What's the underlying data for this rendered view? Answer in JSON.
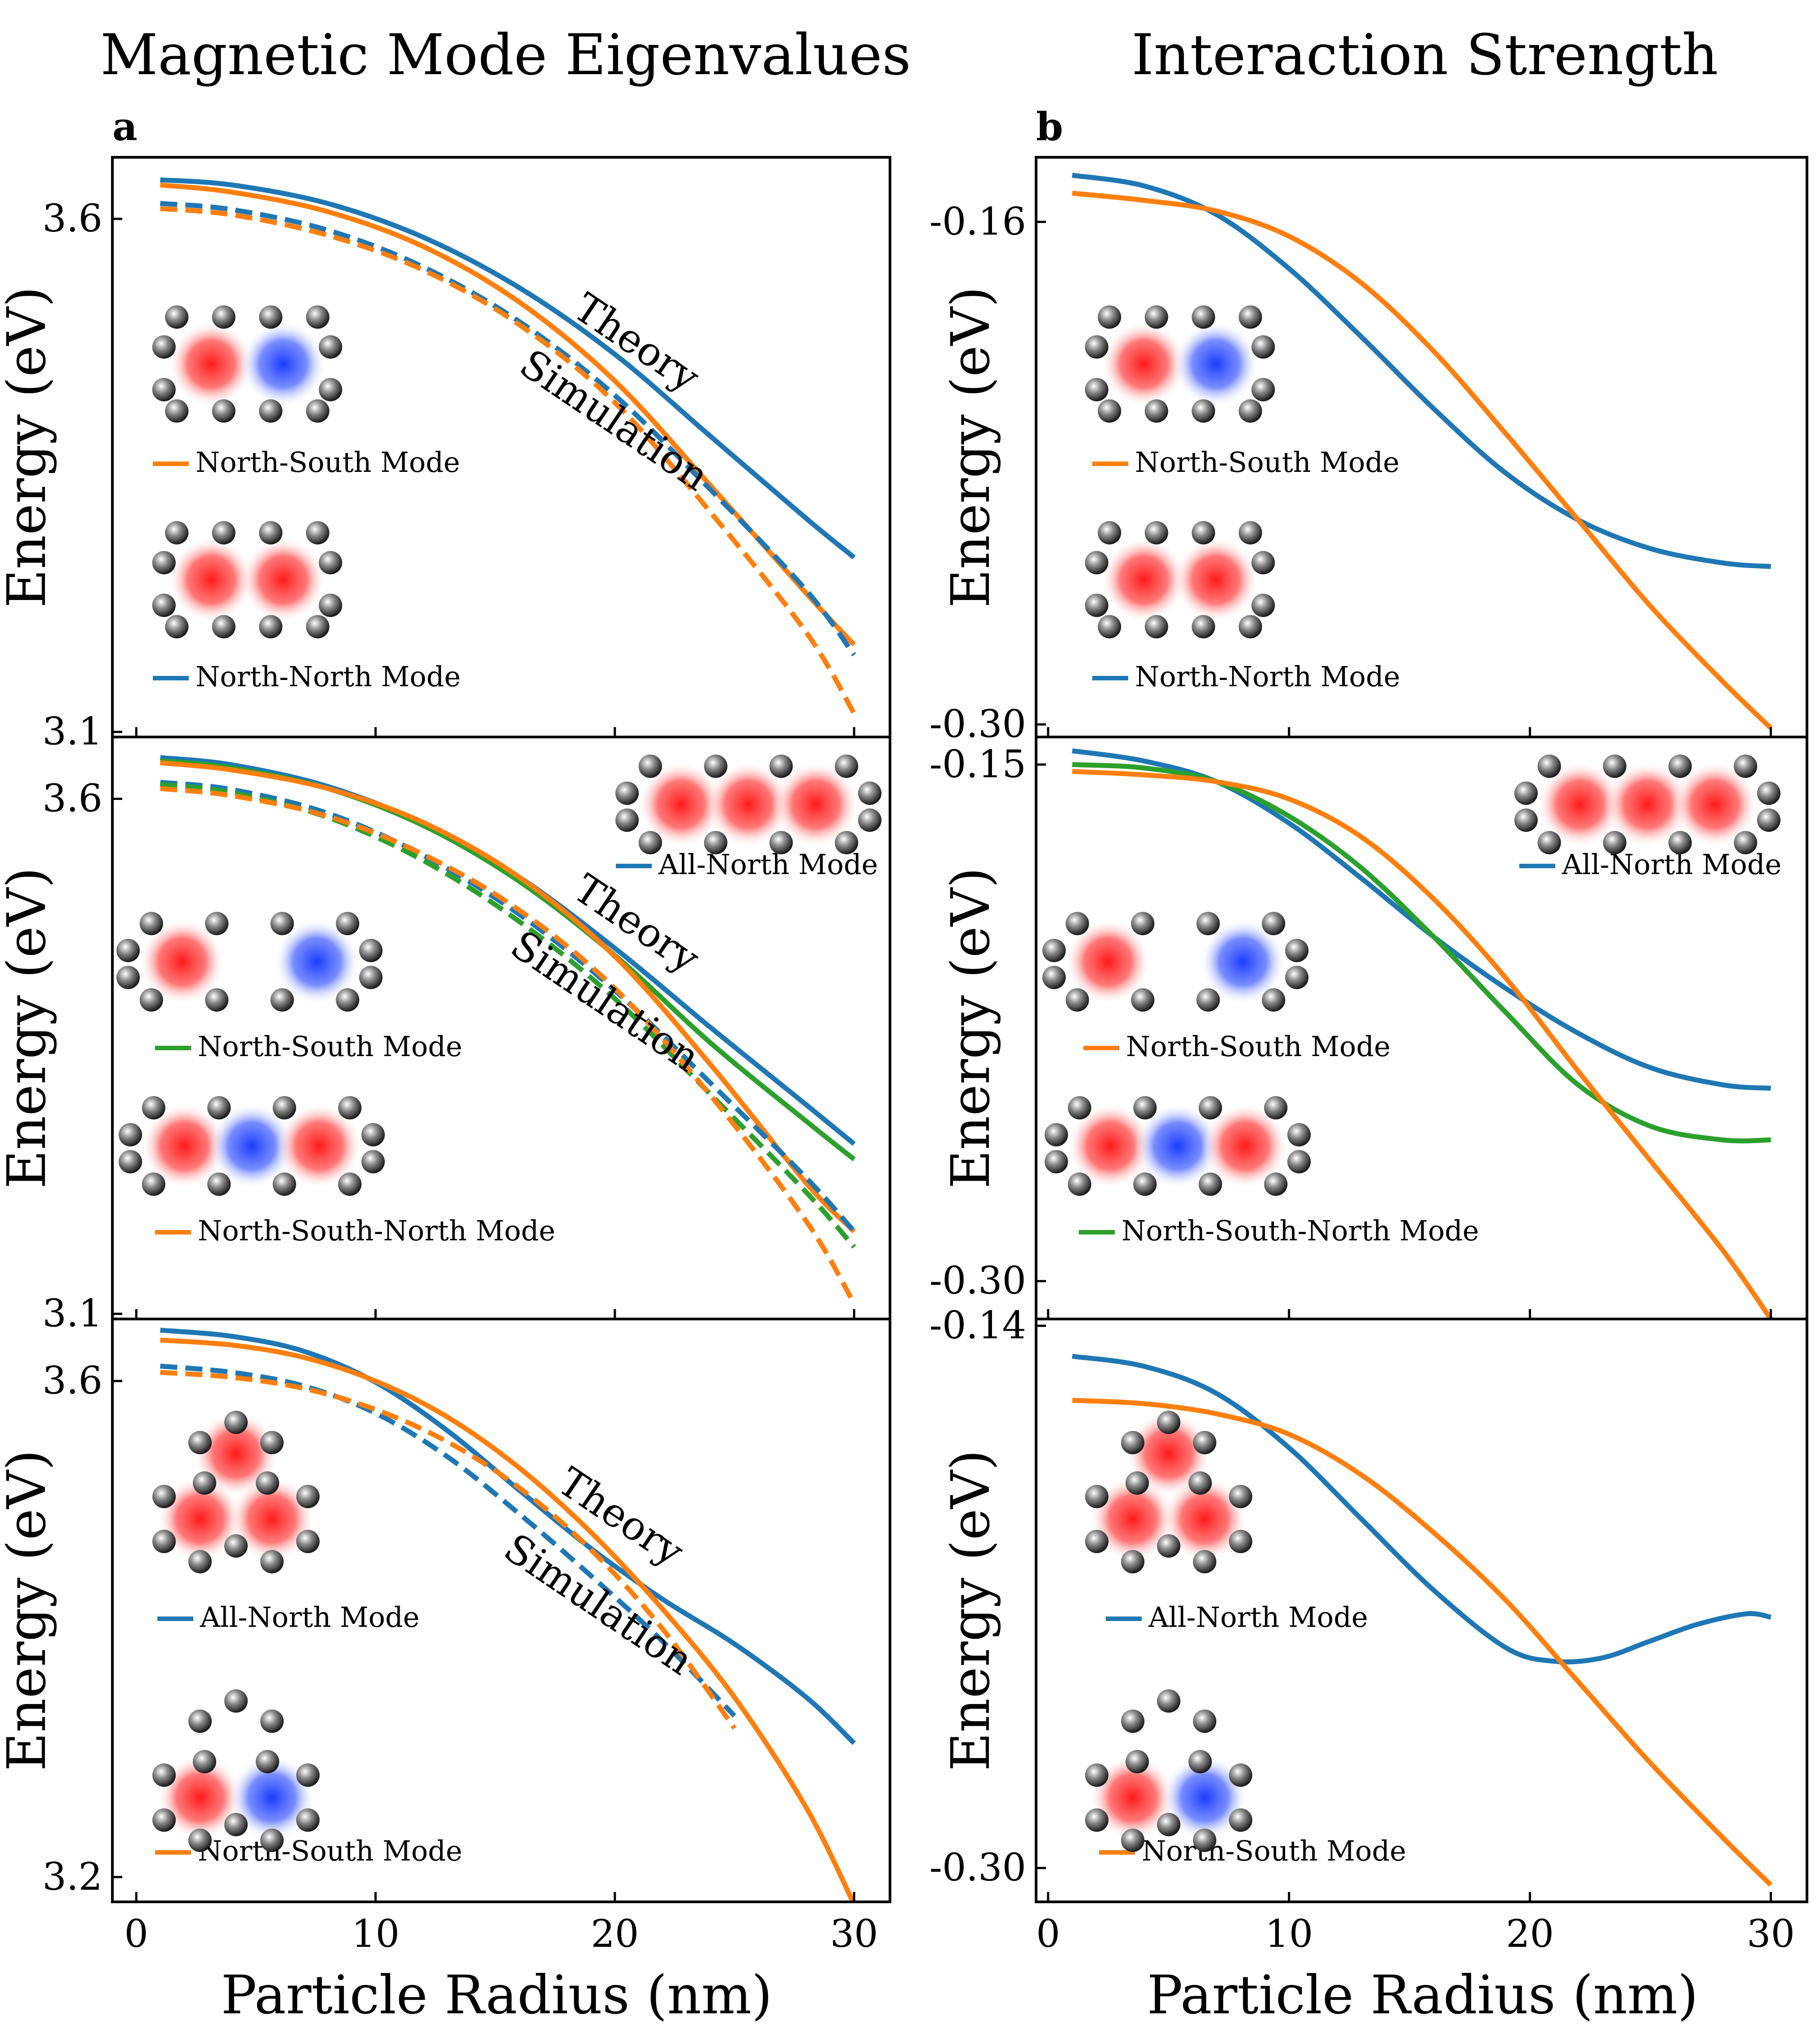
{
  "figure": {
    "columns": [
      {
        "title": "Magnetic Mode Eigenvalues",
        "letter": "a"
      },
      {
        "title": "Interaction Strength",
        "letter": "b"
      }
    ],
    "x_label": "Particle Radius (nm)",
    "y_label": "Energy (eV)",
    "colors": {
      "blue": "#1f77b4",
      "orange": "#ff7f0e",
      "green": "#2ca02c",
      "red_mode": "#ff2020",
      "blue_mode": "#2040ff"
    }
  },
  "chart_data": [
    {
      "id": "a1",
      "type": "line",
      "xlim": [
        -1,
        31.5
      ],
      "ylim": [
        3.095,
        3.66
      ],
      "yticks": [
        {
          "v": 3.6,
          "label": "3.6"
        },
        {
          "v": 3.1,
          "label": "3.1"
        }
      ],
      "xticks": [
        0,
        10,
        20,
        30
      ],
      "annotations": [
        {
          "text": "Theory"
        },
        {
          "text": "Simulation"
        }
      ],
      "legend": [
        {
          "label": "North-South Mode",
          "color": "#ff7f0e"
        },
        {
          "label": "North-North Mode",
          "color": "#1f77b4"
        }
      ],
      "series": [
        {
          "color": "#1f77b4",
          "style": "solid",
          "x": [
            1,
            4,
            8,
            12,
            16,
            20,
            24,
            28,
            30
          ],
          "y": [
            3.638,
            3.633,
            3.615,
            3.582,
            3.533,
            3.468,
            3.388,
            3.308,
            3.27
          ]
        },
        {
          "color": "#ff7f0e",
          "style": "solid",
          "x": [
            1,
            4,
            8,
            12,
            16,
            20,
            24,
            28,
            30
          ],
          "y": [
            3.633,
            3.626,
            3.607,
            3.573,
            3.519,
            3.442,
            3.34,
            3.235,
            3.185
          ]
        },
        {
          "color": "#1f77b4",
          "style": "dashed",
          "x": [
            1,
            4,
            8,
            12,
            16,
            20,
            24,
            28,
            30
          ],
          "y": [
            3.615,
            3.609,
            3.589,
            3.553,
            3.5,
            3.428,
            3.336,
            3.238,
            3.175
          ]
        },
        {
          "color": "#ff7f0e",
          "style": "dashed",
          "x": [
            1,
            4,
            8,
            12,
            16,
            20,
            24,
            28,
            30
          ],
          "y": [
            3.61,
            3.604,
            3.584,
            3.55,
            3.497,
            3.421,
            3.314,
            3.197,
            3.118
          ]
        }
      ]
    },
    {
      "id": "b1",
      "type": "line",
      "xlim": [
        -0.5,
        31.5
      ],
      "ylim": [
        -0.3035,
        -0.142
      ],
      "yticks": [
        {
          "v": -0.16,
          "label": "-0.16"
        },
        {
          "v": -0.3,
          "label": "-0.30"
        }
      ],
      "xticks": [
        0,
        10,
        20,
        30
      ],
      "legend": [
        {
          "label": "North-South Mode",
          "color": "#ff7f0e"
        },
        {
          "label": "North-North Mode",
          "color": "#1f77b4"
        }
      ],
      "series": [
        {
          "color": "#1f77b4",
          "x": [
            1,
            4,
            7,
            10,
            13,
            16,
            19,
            22,
            25,
            28,
            30
          ],
          "y": [
            -0.147,
            -0.15,
            -0.158,
            -0.173,
            -0.192,
            -0.212,
            -0.23,
            -0.243,
            -0.251,
            -0.255,
            -0.256
          ]
        },
        {
          "color": "#ff7f0e",
          "x": [
            1,
            4,
            7,
            10,
            13,
            16,
            19,
            22,
            25,
            28,
            30
          ],
          "y": [
            -0.152,
            -0.154,
            -0.157,
            -0.164,
            -0.177,
            -0.196,
            -0.219,
            -0.243,
            -0.267,
            -0.288,
            -0.301
          ]
        }
      ]
    },
    {
      "id": "a2",
      "type": "line",
      "xlim": [
        -1,
        31.5
      ],
      "ylim": [
        3.095,
        3.66
      ],
      "yticks": [
        {
          "v": 3.6,
          "label": "3.6"
        },
        {
          "v": 3.1,
          "label": "3.1"
        }
      ],
      "xticks": [
        0,
        10,
        20,
        30
      ],
      "annotations": [
        {
          "text": "Theory"
        },
        {
          "text": "Simulation"
        }
      ],
      "legend": [
        {
          "label": "All-North Mode",
          "color": "#1f77b4"
        },
        {
          "label": "North-South Mode",
          "color": "#2ca02c"
        },
        {
          "label": "North-South-North Mode",
          "color": "#ff7f0e"
        }
      ],
      "series": [
        {
          "color": "#1f77b4",
          "style": "solid",
          "x": [
            1,
            4,
            8,
            12,
            16,
            20,
            24,
            28,
            30
          ],
          "y": [
            3.64,
            3.633,
            3.612,
            3.576,
            3.524,
            3.455,
            3.378,
            3.303,
            3.265
          ]
        },
        {
          "color": "#2ca02c",
          "style": "solid",
          "x": [
            1,
            4,
            8,
            12,
            16,
            20,
            24,
            28,
            30
          ],
          "y": [
            3.637,
            3.63,
            3.61,
            3.574,
            3.52,
            3.448,
            3.363,
            3.287,
            3.25
          ]
        },
        {
          "color": "#ff7f0e",
          "style": "solid",
          "x": [
            1,
            4,
            8,
            12,
            16,
            20,
            24,
            28,
            30
          ],
          "y": [
            3.635,
            3.628,
            3.61,
            3.577,
            3.524,
            3.447,
            3.342,
            3.227,
            3.18
          ]
        },
        {
          "color": "#1f77b4",
          "style": "dashed",
          "x": [
            1,
            4,
            8,
            12,
            16,
            20,
            24,
            28,
            30
          ],
          "y": [
            3.616,
            3.609,
            3.586,
            3.545,
            3.488,
            3.414,
            3.324,
            3.232,
            3.18
          ]
        },
        {
          "color": "#2ca02c",
          "style": "dashed",
          "x": [
            1,
            4,
            8,
            12,
            16,
            20,
            24,
            28,
            30
          ],
          "y": [
            3.614,
            3.606,
            3.582,
            3.54,
            3.481,
            3.406,
            3.313,
            3.218,
            3.165
          ]
        },
        {
          "color": "#ff7f0e",
          "style": "dashed",
          "x": [
            1,
            4,
            8,
            12,
            16,
            20,
            24,
            28,
            30
          ],
          "y": [
            3.61,
            3.603,
            3.583,
            3.546,
            3.492,
            3.416,
            3.312,
            3.19,
            3.11
          ]
        }
      ]
    },
    {
      "id": "b2",
      "type": "line",
      "xlim": [
        -0.5,
        31.5
      ],
      "ylim": [
        -0.311,
        -0.142
      ],
      "yticks": [
        {
          "v": -0.15,
          "label": "-0.15"
        },
        {
          "v": -0.3,
          "label": "-0.30"
        }
      ],
      "xticks": [
        0,
        10,
        20,
        30
      ],
      "legend": [
        {
          "label": "All-North Mode",
          "color": "#1f77b4"
        },
        {
          "label": "North-South Mode",
          "color": "#ff7f0e"
        },
        {
          "label": "North-South-North Mode",
          "color": "#2ca02c"
        }
      ],
      "series": [
        {
          "color": "#1f77b4",
          "x": [
            1,
            4,
            7,
            10,
            13,
            16,
            19,
            22,
            25,
            28,
            30
          ],
          "y": [
            -0.146,
            -0.149,
            -0.155,
            -0.167,
            -0.183,
            -0.2,
            -0.215,
            -0.228,
            -0.238,
            -0.243,
            -0.244
          ]
        },
        {
          "color": "#2ca02c",
          "x": [
            1,
            4,
            7,
            10,
            13,
            16,
            19,
            22,
            25,
            28,
            30
          ],
          "y": [
            -0.15,
            -0.151,
            -0.155,
            -0.165,
            -0.18,
            -0.2,
            -0.222,
            -0.243,
            -0.255,
            -0.259,
            -0.259
          ]
        },
        {
          "color": "#ff7f0e",
          "x": [
            1,
            4,
            7,
            10,
            13,
            16,
            19,
            22,
            25,
            28,
            30
          ],
          "y": [
            -0.152,
            -0.153,
            -0.155,
            -0.16,
            -0.171,
            -0.189,
            -0.212,
            -0.239,
            -0.265,
            -0.291,
            -0.311
          ]
        }
      ]
    },
    {
      "id": "a3",
      "type": "line",
      "xlim": [
        -1,
        31.5
      ],
      "ylim": [
        3.18,
        3.65
      ],
      "yticks": [
        {
          "v": 3.6,
          "label": "3.6"
        },
        {
          "v": 3.2,
          "label": "3.2"
        }
      ],
      "xticks": [
        0,
        10,
        20,
        30
      ],
      "annotations": [
        {
          "text": "Theory"
        },
        {
          "text": "Simulation"
        }
      ],
      "legend": [
        {
          "label": "All-North Mode",
          "color": "#1f77b4"
        },
        {
          "label": "North-South Mode",
          "color": "#ff7f0e"
        }
      ],
      "series": [
        {
          "color": "#1f77b4",
          "style": "solid",
          "x": [
            1,
            4,
            7,
            10,
            13,
            16,
            19,
            22,
            25,
            28,
            30
          ],
          "y": [
            3.641,
            3.636,
            3.624,
            3.599,
            3.56,
            3.512,
            3.465,
            3.424,
            3.388,
            3.345,
            3.308
          ]
        },
        {
          "color": "#ff7f0e",
          "style": "solid",
          "x": [
            1,
            4,
            7,
            10,
            13,
            16,
            19,
            22,
            25,
            28,
            30
          ],
          "y": [
            3.633,
            3.629,
            3.619,
            3.6,
            3.571,
            3.53,
            3.478,
            3.416,
            3.345,
            3.256,
            3.178
          ]
        },
        {
          "color": "#1f77b4",
          "style": "dashed",
          "x": [
            1,
            4,
            7,
            10,
            13,
            16,
            19,
            22,
            25
          ],
          "y": [
            3.612,
            3.607,
            3.596,
            3.574,
            3.539,
            3.493,
            3.443,
            3.39,
            3.33
          ]
        },
        {
          "color": "#ff7f0e",
          "style": "dashed",
          "x": [
            1,
            4,
            7,
            10,
            13,
            16,
            19,
            22,
            25
          ],
          "y": [
            3.607,
            3.603,
            3.594,
            3.577,
            3.551,
            3.514,
            3.464,
            3.4,
            3.32
          ]
        }
      ]
    },
    {
      "id": "b3",
      "type": "line",
      "xlim": [
        -0.5,
        31.5
      ],
      "ylim": [
        -0.31,
        -0.138
      ],
      "yticks": [
        {
          "v": -0.14,
          "label": "-0.14"
        },
        {
          "v": -0.3,
          "label": "-0.30"
        }
      ],
      "xticks": [
        0,
        10,
        20,
        30
      ],
      "legend": [
        {
          "label": "All-North Mode",
          "color": "#1f77b4"
        },
        {
          "label": "North-South Mode",
          "color": "#ff7f0e"
        }
      ],
      "series": [
        {
          "color": "#1f77b4",
          "x": [
            1,
            4,
            7,
            10,
            13,
            16,
            19,
            21,
            23,
            25,
            27,
            29,
            30
          ],
          "y": [
            -0.149,
            -0.152,
            -0.16,
            -0.176,
            -0.197,
            -0.218,
            -0.235,
            -0.239,
            -0.238,
            -0.233,
            -0.228,
            -0.225,
            -0.226
          ]
        },
        {
          "color": "#ff7f0e",
          "x": [
            1,
            4,
            7,
            10,
            13,
            16,
            19,
            22,
            25,
            28,
            30
          ],
          "y": [
            -0.162,
            -0.163,
            -0.166,
            -0.172,
            -0.184,
            -0.201,
            -0.221,
            -0.245,
            -0.269,
            -0.291,
            -0.305
          ]
        }
      ]
    }
  ],
  "x_tick_labels": [
    "0",
    "10",
    "20",
    "30"
  ]
}
